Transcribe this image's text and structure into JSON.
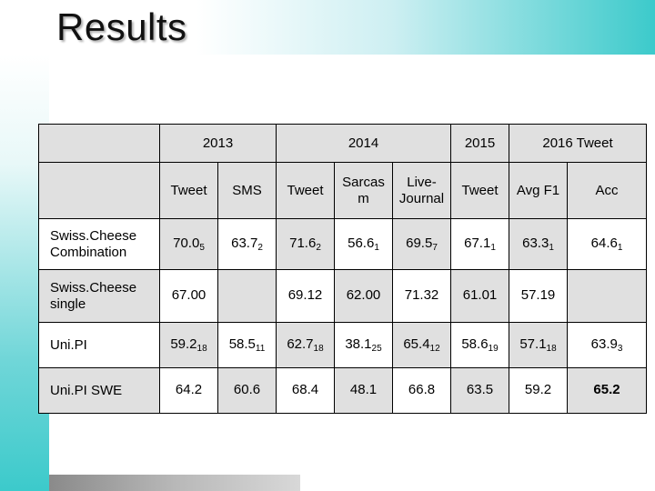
{
  "slide_title": "Results",
  "year_headers": [
    "2013",
    "2014",
    "2015",
    "2016 Tweet"
  ],
  "sub_headers": [
    "Tweet",
    "SMS",
    "Tweet",
    "Sarcasm",
    "Live-Journal",
    "Tweet",
    "Avg F1",
    "Acc"
  ],
  "sub_headers_display": {
    "sarcasm_line1": "Sarcas",
    "sarcasm_line2": "m",
    "live_line1": "Live-",
    "live_line2": "Journal"
  },
  "rows": [
    {
      "label_line1": "Swiss.Cheese",
      "label_line2": "Combination",
      "cells": [
        [
          "70.0",
          "5"
        ],
        [
          "63.7",
          "2"
        ],
        [
          "71.6",
          "2"
        ],
        [
          "56.6",
          "1"
        ],
        [
          "69.5",
          "7"
        ],
        [
          "67.1",
          "1"
        ],
        [
          "63.3",
          "1"
        ],
        [
          "64.6",
          "1"
        ]
      ]
    },
    {
      "label_line1": "Swiss.Cheese",
      "label_line2": "single",
      "cells": [
        [
          "67.00",
          ""
        ],
        [
          "",
          ""
        ],
        [
          "69.12",
          ""
        ],
        [
          "62.00",
          ""
        ],
        [
          "71.32",
          ""
        ],
        [
          "61.01",
          ""
        ],
        [
          "57.19",
          ""
        ],
        [
          "",
          ""
        ]
      ]
    },
    {
      "label_line1": "Uni.PI",
      "label_line2": "",
      "cells": [
        [
          "59.2",
          "18"
        ],
        [
          "58.5",
          "11"
        ],
        [
          "62.7",
          "18"
        ],
        [
          "38.1",
          "25"
        ],
        [
          "65.4",
          "12"
        ],
        [
          "58.6",
          "19"
        ],
        [
          "57.1",
          "18"
        ],
        [
          "63.9",
          "3"
        ]
      ]
    },
    {
      "label_line1": "Uni.PI SWE",
      "label_line2": "",
      "cells": [
        [
          "64.2",
          ""
        ],
        [
          "60.6",
          ""
        ],
        [
          "68.4",
          ""
        ],
        [
          "48.1",
          ""
        ],
        [
          "66.8",
          ""
        ],
        [
          "63.5",
          ""
        ],
        [
          "59.2",
          ""
        ],
        [
          "65.2",
          ""
        ]
      ]
    }
  ]
}
